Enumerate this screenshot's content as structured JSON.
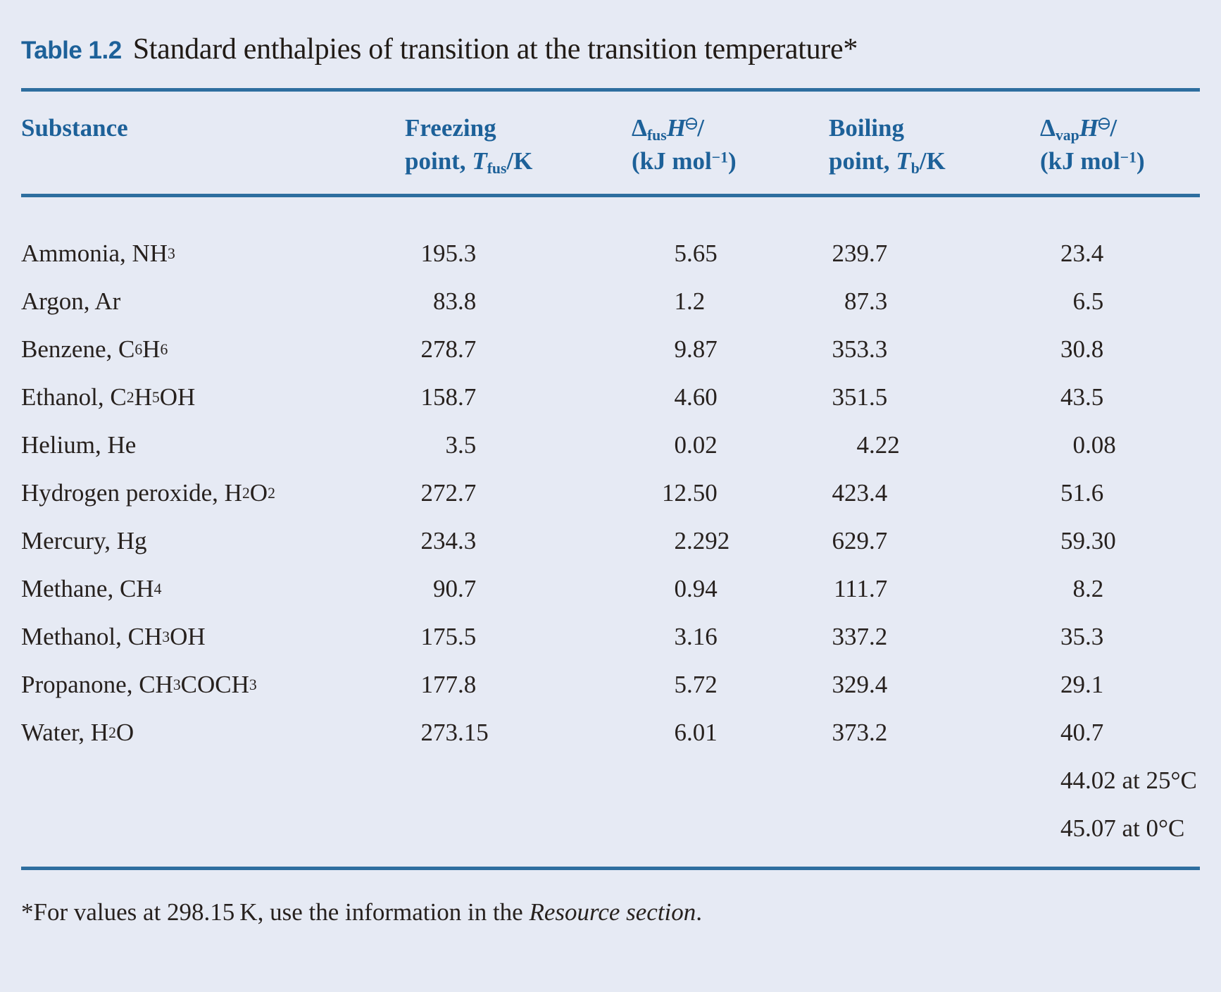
{
  "title": {
    "tag": "Table 1.2",
    "text": "Standard enthalpies of transition at the transition temperature*"
  },
  "colors": {
    "background": "#e6eaf4",
    "rule_blue": "#2e6e9f",
    "heading_blue": "#1d6199",
    "body_ink": "#27211e"
  },
  "header": {
    "substance": "Substance",
    "freezing": {
      "line1": [
        {
          "t": "Freezing"
        }
      ],
      "line2": [
        {
          "t": "point, "
        },
        {
          "i": "T"
        },
        {
          "sub": "fus"
        },
        {
          "t": "/K"
        }
      ]
    },
    "dfus": {
      "line1": [
        {
          "t": "Δ"
        },
        {
          "sub": "fus"
        },
        {
          "i": "H"
        },
        {
          "std": true
        },
        {
          "t": "/"
        }
      ],
      "line2": [
        {
          "t": "(kJ mol"
        },
        {
          "sup": "−1"
        },
        {
          "t": ")"
        }
      ]
    },
    "boiling": {
      "line1": [
        {
          "t": "Boiling"
        }
      ],
      "line2": [
        {
          "t": "point, "
        },
        {
          "i": "T"
        },
        {
          "sub": "b"
        },
        {
          "t": "/K"
        }
      ]
    },
    "dvap": {
      "line1": [
        {
          "t": "Δ"
        },
        {
          "sub": "vap"
        },
        {
          "i": "H"
        },
        {
          "std": true
        },
        {
          "t": "/"
        }
      ],
      "line2": [
        {
          "t": "(kJ mol"
        },
        {
          "sup": "−1"
        },
        {
          "t": ")"
        }
      ]
    }
  },
  "rows": [
    {
      "substance": "Ammonia, NH3",
      "freezing": "195.3",
      "dfus": "5.65",
      "boiling": "239.7",
      "dvap": "23.4"
    },
    {
      "substance": "Argon, Ar",
      "freezing": "83.8",
      "dfus": "1.2",
      "boiling": "87.3",
      "dvap": "6.5"
    },
    {
      "substance": "Benzene, C6H6",
      "freezing": "278.7",
      "dfus": "9.87",
      "boiling": "353.3",
      "dvap": "30.8"
    },
    {
      "substance": "Ethanol, C2H5OH",
      "freezing": "158.7",
      "dfus": "4.60",
      "boiling": "351.5",
      "dvap": "43.5"
    },
    {
      "substance": "Helium, He",
      "freezing": "3.5",
      "dfus": "0.02",
      "boiling": "4.22",
      "dvap": "0.08"
    },
    {
      "substance": "Hydrogen peroxide, H2O2",
      "freezing": "272.7",
      "dfus": "12.50",
      "boiling": "423.4",
      "dvap": "51.6"
    },
    {
      "substance": "Mercury, Hg",
      "freezing": "234.3",
      "dfus": "2.292",
      "boiling": "629.7",
      "dvap": "59.30"
    },
    {
      "substance": "Methane, CH4",
      "freezing": "90.7",
      "dfus": "0.94",
      "boiling": "111.7",
      "dvap": "8.2"
    },
    {
      "substance": "Methanol, CH3OH",
      "freezing": "175.5",
      "dfus": "3.16",
      "boiling": "337.2",
      "dvap": "35.3"
    },
    {
      "substance": "Propanone, CH3COCH3",
      "freezing": "177.8",
      "dfus": "5.72",
      "boiling": "329.4",
      "dvap": "29.1"
    },
    {
      "substance": "Water, H2O",
      "freezing": "273.15",
      "dfus": "6.01",
      "boiling": "373.2",
      "dvap": "40.7"
    },
    {
      "substance": "",
      "freezing": "",
      "dfus": "",
      "boiling": "",
      "dvap": "44.02 at 25°C"
    },
    {
      "substance": "",
      "freezing": "",
      "dfus": "",
      "boiling": "",
      "dvap": "45.07 at 0°C"
    }
  ],
  "footnote": {
    "prefix": "*For values at 298.15 K, use the information in the ",
    "italic": "Resource section",
    "suffix": "."
  }
}
